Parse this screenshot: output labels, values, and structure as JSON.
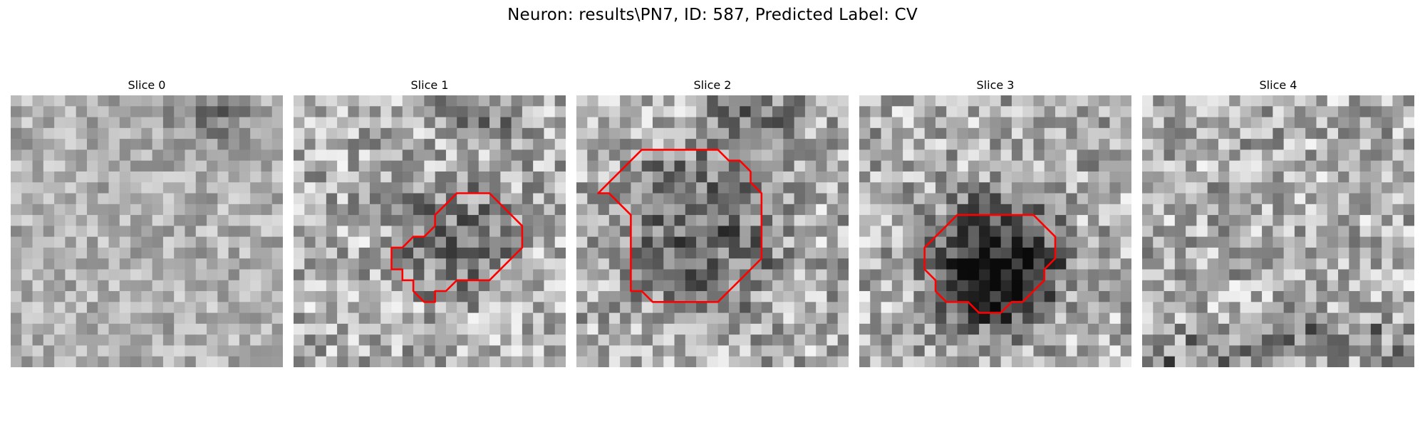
{
  "figure": {
    "suptitle": "Neuron: results\\PN7, ID: 587, Predicted Label: CV"
  },
  "contour_color": "#ff0000",
  "panels": [
    {
      "title": "Slice 0",
      "has_contour": false,
      "dark_center": false,
      "texture": "smooth",
      "contour": []
    },
    {
      "title": "Slice 1",
      "has_contour": true,
      "dark_center": true,
      "texture": "noisy",
      "contour": [
        [
          15,
          9
        ],
        [
          18,
          9
        ],
        [
          21,
          12
        ],
        [
          21,
          14
        ],
        [
          18,
          17
        ],
        [
          15,
          17
        ],
        [
          14,
          18
        ],
        [
          13,
          18
        ],
        [
          13,
          19
        ],
        [
          12,
          19
        ],
        [
          11,
          18
        ],
        [
          11,
          17
        ],
        [
          10,
          17
        ],
        [
          10,
          16
        ],
        [
          9,
          16
        ],
        [
          9,
          14
        ],
        [
          10,
          14
        ],
        [
          11,
          13
        ],
        [
          12,
          13
        ],
        [
          13,
          12
        ],
        [
          13,
          11
        ],
        [
          14,
          10
        ]
      ]
    },
    {
      "title": "Slice 2",
      "has_contour": true,
      "dark_center": true,
      "texture": "noisy",
      "contour": [
        [
          10,
          5
        ],
        [
          13,
          5
        ],
        [
          14,
          6
        ],
        [
          15,
          6
        ],
        [
          16,
          7
        ],
        [
          16,
          8
        ],
        [
          17,
          9
        ],
        [
          17,
          15
        ],
        [
          16,
          16
        ],
        [
          15,
          17
        ],
        [
          14,
          18
        ],
        [
          13,
          19
        ],
        [
          7,
          19
        ],
        [
          6,
          18
        ],
        [
          5,
          18
        ],
        [
          5,
          11
        ],
        [
          4,
          10
        ],
        [
          3,
          9
        ],
        [
          2,
          9
        ],
        [
          3,
          8
        ],
        [
          4,
          7
        ],
        [
          5,
          6
        ],
        [
          6,
          5
        ],
        [
          7,
          5
        ]
      ]
    },
    {
      "title": "Slice 3",
      "has_contour": true,
      "dark_center": true,
      "texture": "noisy",
      "contour": [
        [
          13,
          11
        ],
        [
          16,
          11
        ],
        [
          17,
          12
        ],
        [
          18,
          13
        ],
        [
          18,
          15
        ],
        [
          17,
          16
        ],
        [
          17,
          17
        ],
        [
          16,
          18
        ],
        [
          15,
          19
        ],
        [
          14,
          19
        ],
        [
          13,
          20
        ],
        [
          11,
          20
        ],
        [
          10,
          19
        ],
        [
          8,
          19
        ],
        [
          7,
          18
        ],
        [
          7,
          17
        ],
        [
          6,
          16
        ],
        [
          6,
          14
        ],
        [
          7,
          13
        ],
        [
          8,
          12
        ],
        [
          9,
          11
        ]
      ]
    },
    {
      "title": "Slice 4",
      "has_contour": false,
      "dark_center": false,
      "texture": "noisy",
      "contour": []
    }
  ]
}
